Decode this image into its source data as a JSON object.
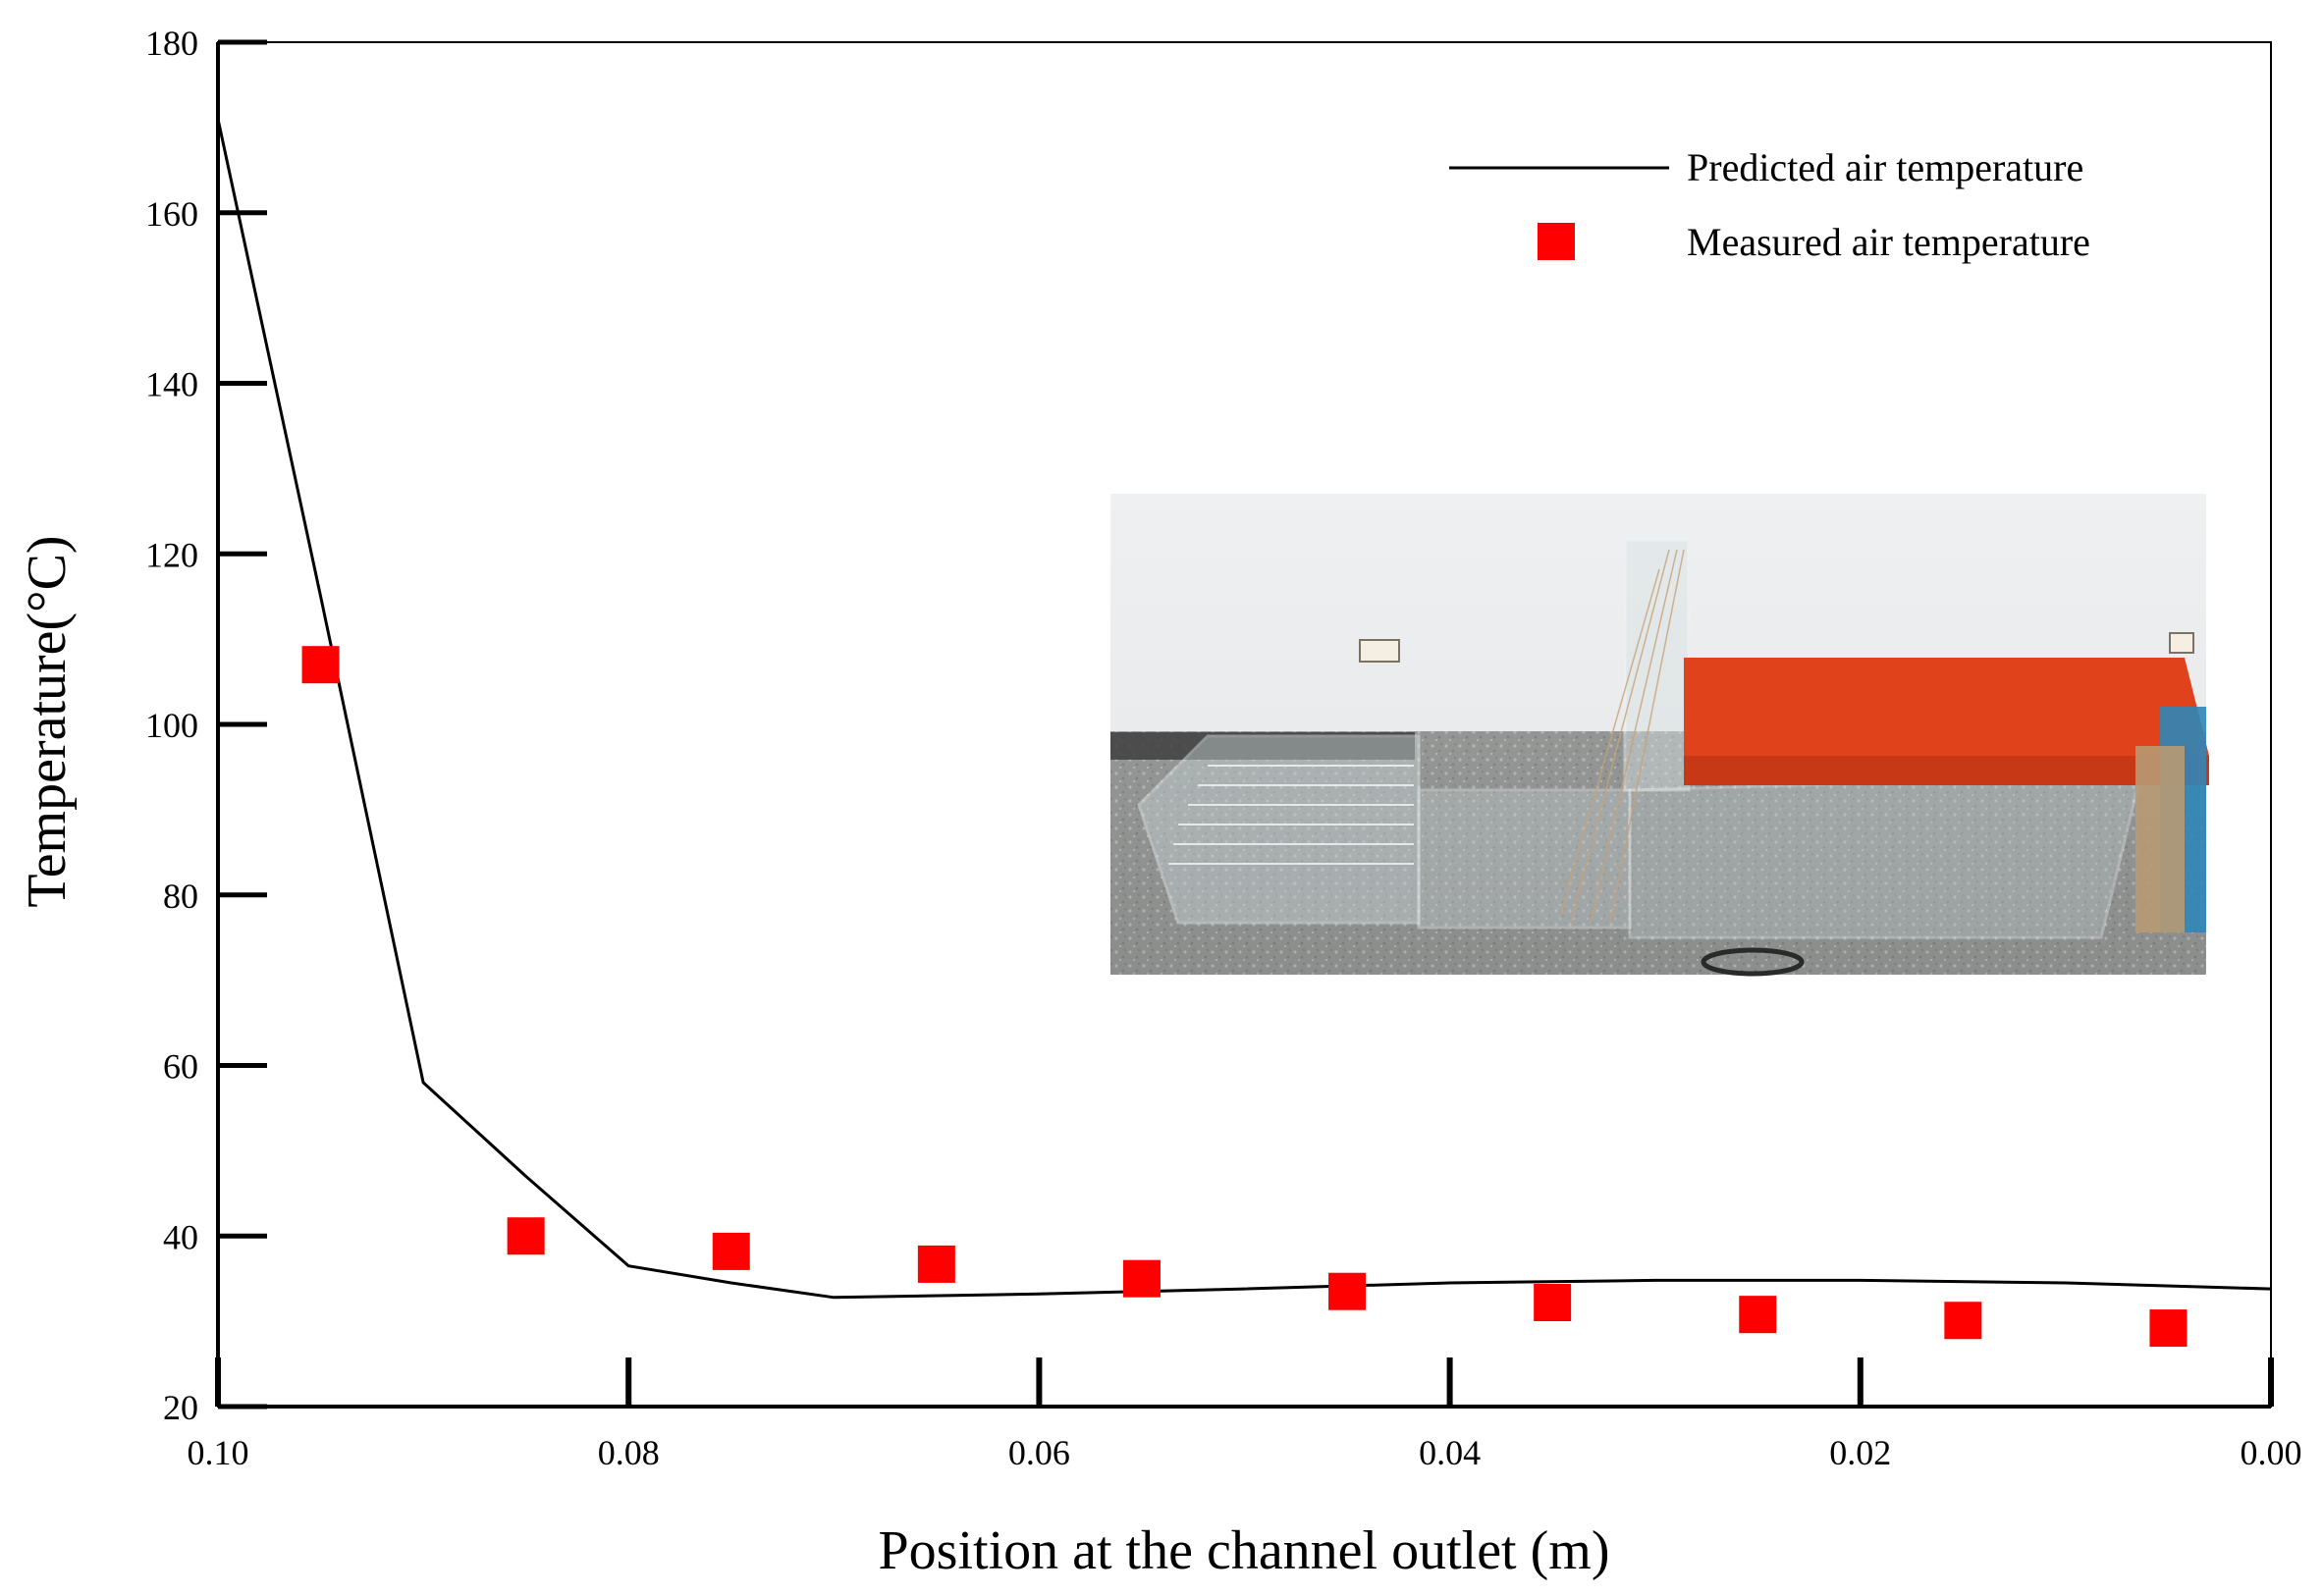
{
  "chart_data": {
    "type": "line",
    "xlabel": "Position at the channel outlet (m)",
    "ylabel": "Temperature(°C)",
    "xlim": [
      0.1,
      0.0
    ],
    "ylim": [
      20,
      180
    ],
    "x_reversed": true,
    "xticks": [
      "0.10",
      "0.08",
      "0.06",
      "0.04",
      "0.02",
      "0.00"
    ],
    "yticks": [
      "20",
      "40",
      "60",
      "80",
      "100",
      "120",
      "140",
      "160",
      "180"
    ],
    "grid": false,
    "legend_position": "top-right",
    "series": [
      {
        "name": "Predicted air temperature",
        "kind": "line",
        "color": "#000000",
        "x": [
          0.1,
          0.095,
          0.09,
          0.085,
          0.08,
          0.075,
          0.07,
          0.06,
          0.05,
          0.04,
          0.03,
          0.02,
          0.01,
          0.0
        ],
        "y": [
          171,
          115,
          58,
          47,
          36.5,
          34.5,
          32.8,
          33.2,
          33.8,
          34.5,
          34.8,
          34.8,
          34.5,
          33.8
        ]
      },
      {
        "name": "Measured air temperature",
        "kind": "scatter",
        "marker": "square",
        "color": "#ff0000",
        "x": [
          0.095,
          0.085,
          0.075,
          0.065,
          0.055,
          0.045,
          0.035,
          0.025,
          0.015,
          0.005
        ],
        "y": [
          107,
          40,
          38.2,
          36.7,
          35,
          33.5,
          32.2,
          30.8,
          30.1,
          29.2
        ]
      }
    ],
    "inset": {
      "type": "photograph",
      "subject": "experimental channel setup"
    }
  }
}
